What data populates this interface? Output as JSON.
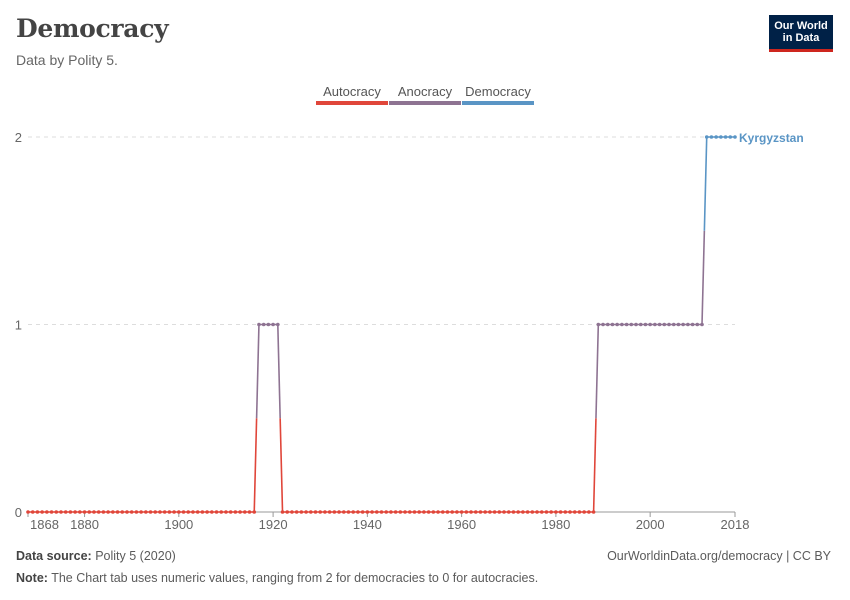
{
  "header": {
    "title": "Democracy",
    "subtitle": "Data by Polity 5."
  },
  "logo": {
    "line1": "Our World",
    "line2": "in Data",
    "bg_color": "#002147",
    "accent_color": "#ce261e"
  },
  "footer": {
    "source_label": "Data source:",
    "source_text": "Polity 5 (2020)",
    "url_text": "OurWorldinData.org/democracy | CC BY",
    "note_label": "Note:",
    "note_text": "The Chart tab uses numeric values, ranging from 2 for democracies to 0 for autocracies."
  },
  "chart_data": {
    "type": "line",
    "title": "Democracy",
    "subtitle": "Data by Polity 5.",
    "xlim": [
      1868,
      2018
    ],
    "ylim": [
      0,
      2
    ],
    "grid": true,
    "legend_position": "top-center",
    "x_ticks": [
      1868,
      1880,
      1900,
      1920,
      1940,
      1960,
      1980,
      2000,
      2018
    ],
    "y_ticks": [
      0,
      1,
      2
    ],
    "legend": [
      {
        "label": "Autocracy",
        "color": "#e0463a"
      },
      {
        "label": "Anocracy",
        "color": "#8e7392"
      },
      {
        "label": "Democracy",
        "color": "#5a95c5"
      }
    ],
    "series": [
      {
        "name": "Kyrgyzstan",
        "segments": [
          {
            "from": 1868,
            "to": 1916,
            "value": 0
          },
          {
            "from": 1917,
            "to": 1921,
            "value": 1
          },
          {
            "from": 1922,
            "to": 1988,
            "value": 0
          },
          {
            "from": 1989,
            "to": 2011,
            "value": 1
          },
          {
            "from": 2012,
            "to": 2018,
            "value": 2
          }
        ]
      }
    ]
  }
}
